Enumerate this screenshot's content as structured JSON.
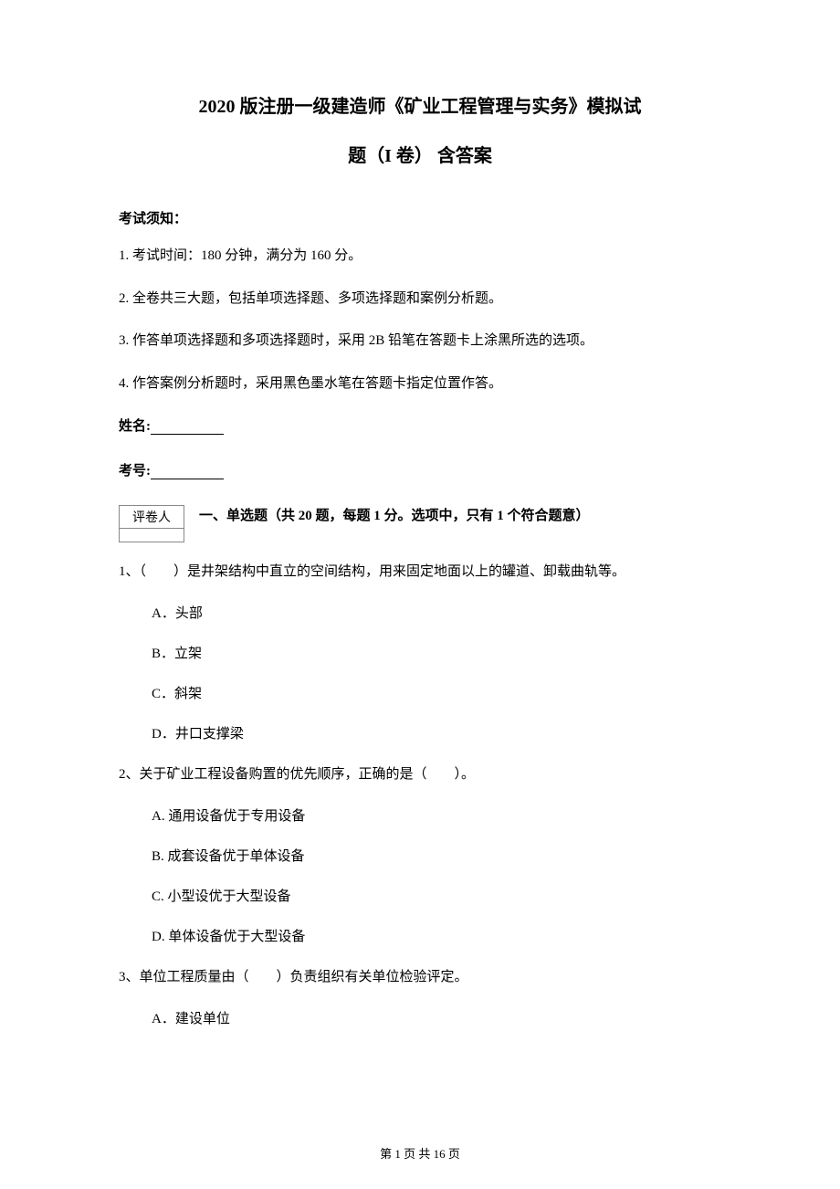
{
  "title": "2020 版注册一级建造师《矿业工程管理与实务》模拟试",
  "subtitle": "题（I 卷） 含答案",
  "notice_label": "考试须知：",
  "instructions": [
    "1. 考试时间：180 分钟，满分为 160 分。",
    "2. 全卷共三大题，包括单项选择题、多项选择题和案例分析题。",
    "3. 作答单项选择题和多项选择题时，采用 2B 铅笔在答题卡上涂黑所选的选项。",
    "4. 作答案例分析题时，采用黑色墨水笔在答题卡指定位置作答。"
  ],
  "name_label": "姓名:",
  "id_label": "考号:",
  "scorer_label": "评卷人",
  "section1_heading": "一、单选题（共 20 题，每题 1 分。选项中，只有 1 个符合题意）",
  "questions": [
    {
      "stem": "1、（　　）是井架结构中直立的空间结构，用来固定地面以上的罐道、卸载曲轨等。",
      "options": [
        "A．头部",
        "B．立架",
        "C．斜架",
        "D．井口支撑梁"
      ]
    },
    {
      "stem": "2、关于矿业工程设备购置的优先顺序，正确的是（　　）。",
      "options": [
        "A. 通用设备优于专用设备",
        "B. 成套设备优于单体设备",
        "C. 小型设优于大型设备",
        "D. 单体设备优于大型设备"
      ]
    },
    {
      "stem": "3、单位工程质量由（　　）负责组织有关单位检验评定。",
      "options": [
        "A．建设单位"
      ]
    }
  ],
  "footer": {
    "prefix": "第 ",
    "current": "1",
    "middle": " 页 共 ",
    "total": "16",
    "suffix": " 页"
  },
  "colors": {
    "text": "#000000",
    "background": "#ffffff",
    "border": "#888888"
  }
}
